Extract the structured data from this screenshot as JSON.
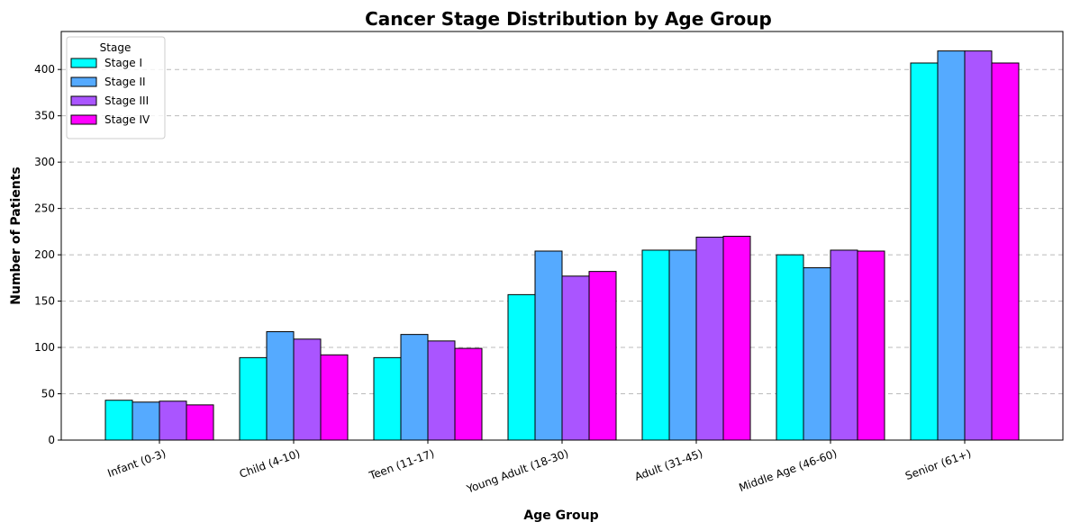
{
  "chart_data": {
    "type": "bar",
    "title": "Cancer Stage Distribution by Age Group",
    "xlabel": "Age Group",
    "ylabel": "Number of Patients",
    "categories": [
      "Infant (0-3)",
      "Child (4-10)",
      "Teen (11-17)",
      "Young Adult (18-30)",
      "Adult (31-45)",
      "Middle Age (46-60)",
      "Senior (61+)"
    ],
    "series": [
      {
        "name": "Stage I",
        "color": "#00ffff",
        "values": [
          43,
          89,
          89,
          157,
          205,
          200,
          407
        ]
      },
      {
        "name": "Stage II",
        "color": "#55aaff",
        "values": [
          41,
          117,
          114,
          204,
          205,
          186,
          420
        ]
      },
      {
        "name": "Stage III",
        "color": "#aa55ff",
        "values": [
          42,
          109,
          107,
          177,
          219,
          205,
          420
        ]
      },
      {
        "name": "Stage IV",
        "color": "#ff00ff",
        "values": [
          38,
          92,
          99,
          182,
          220,
          204,
          407
        ]
      }
    ],
    "ylim": [
      0,
      441
    ],
    "yticks": [
      0,
      50,
      100,
      150,
      200,
      250,
      300,
      350,
      400
    ],
    "grid": "y-dashed",
    "legend": {
      "title": "Stage",
      "placement": "top-left"
    }
  }
}
